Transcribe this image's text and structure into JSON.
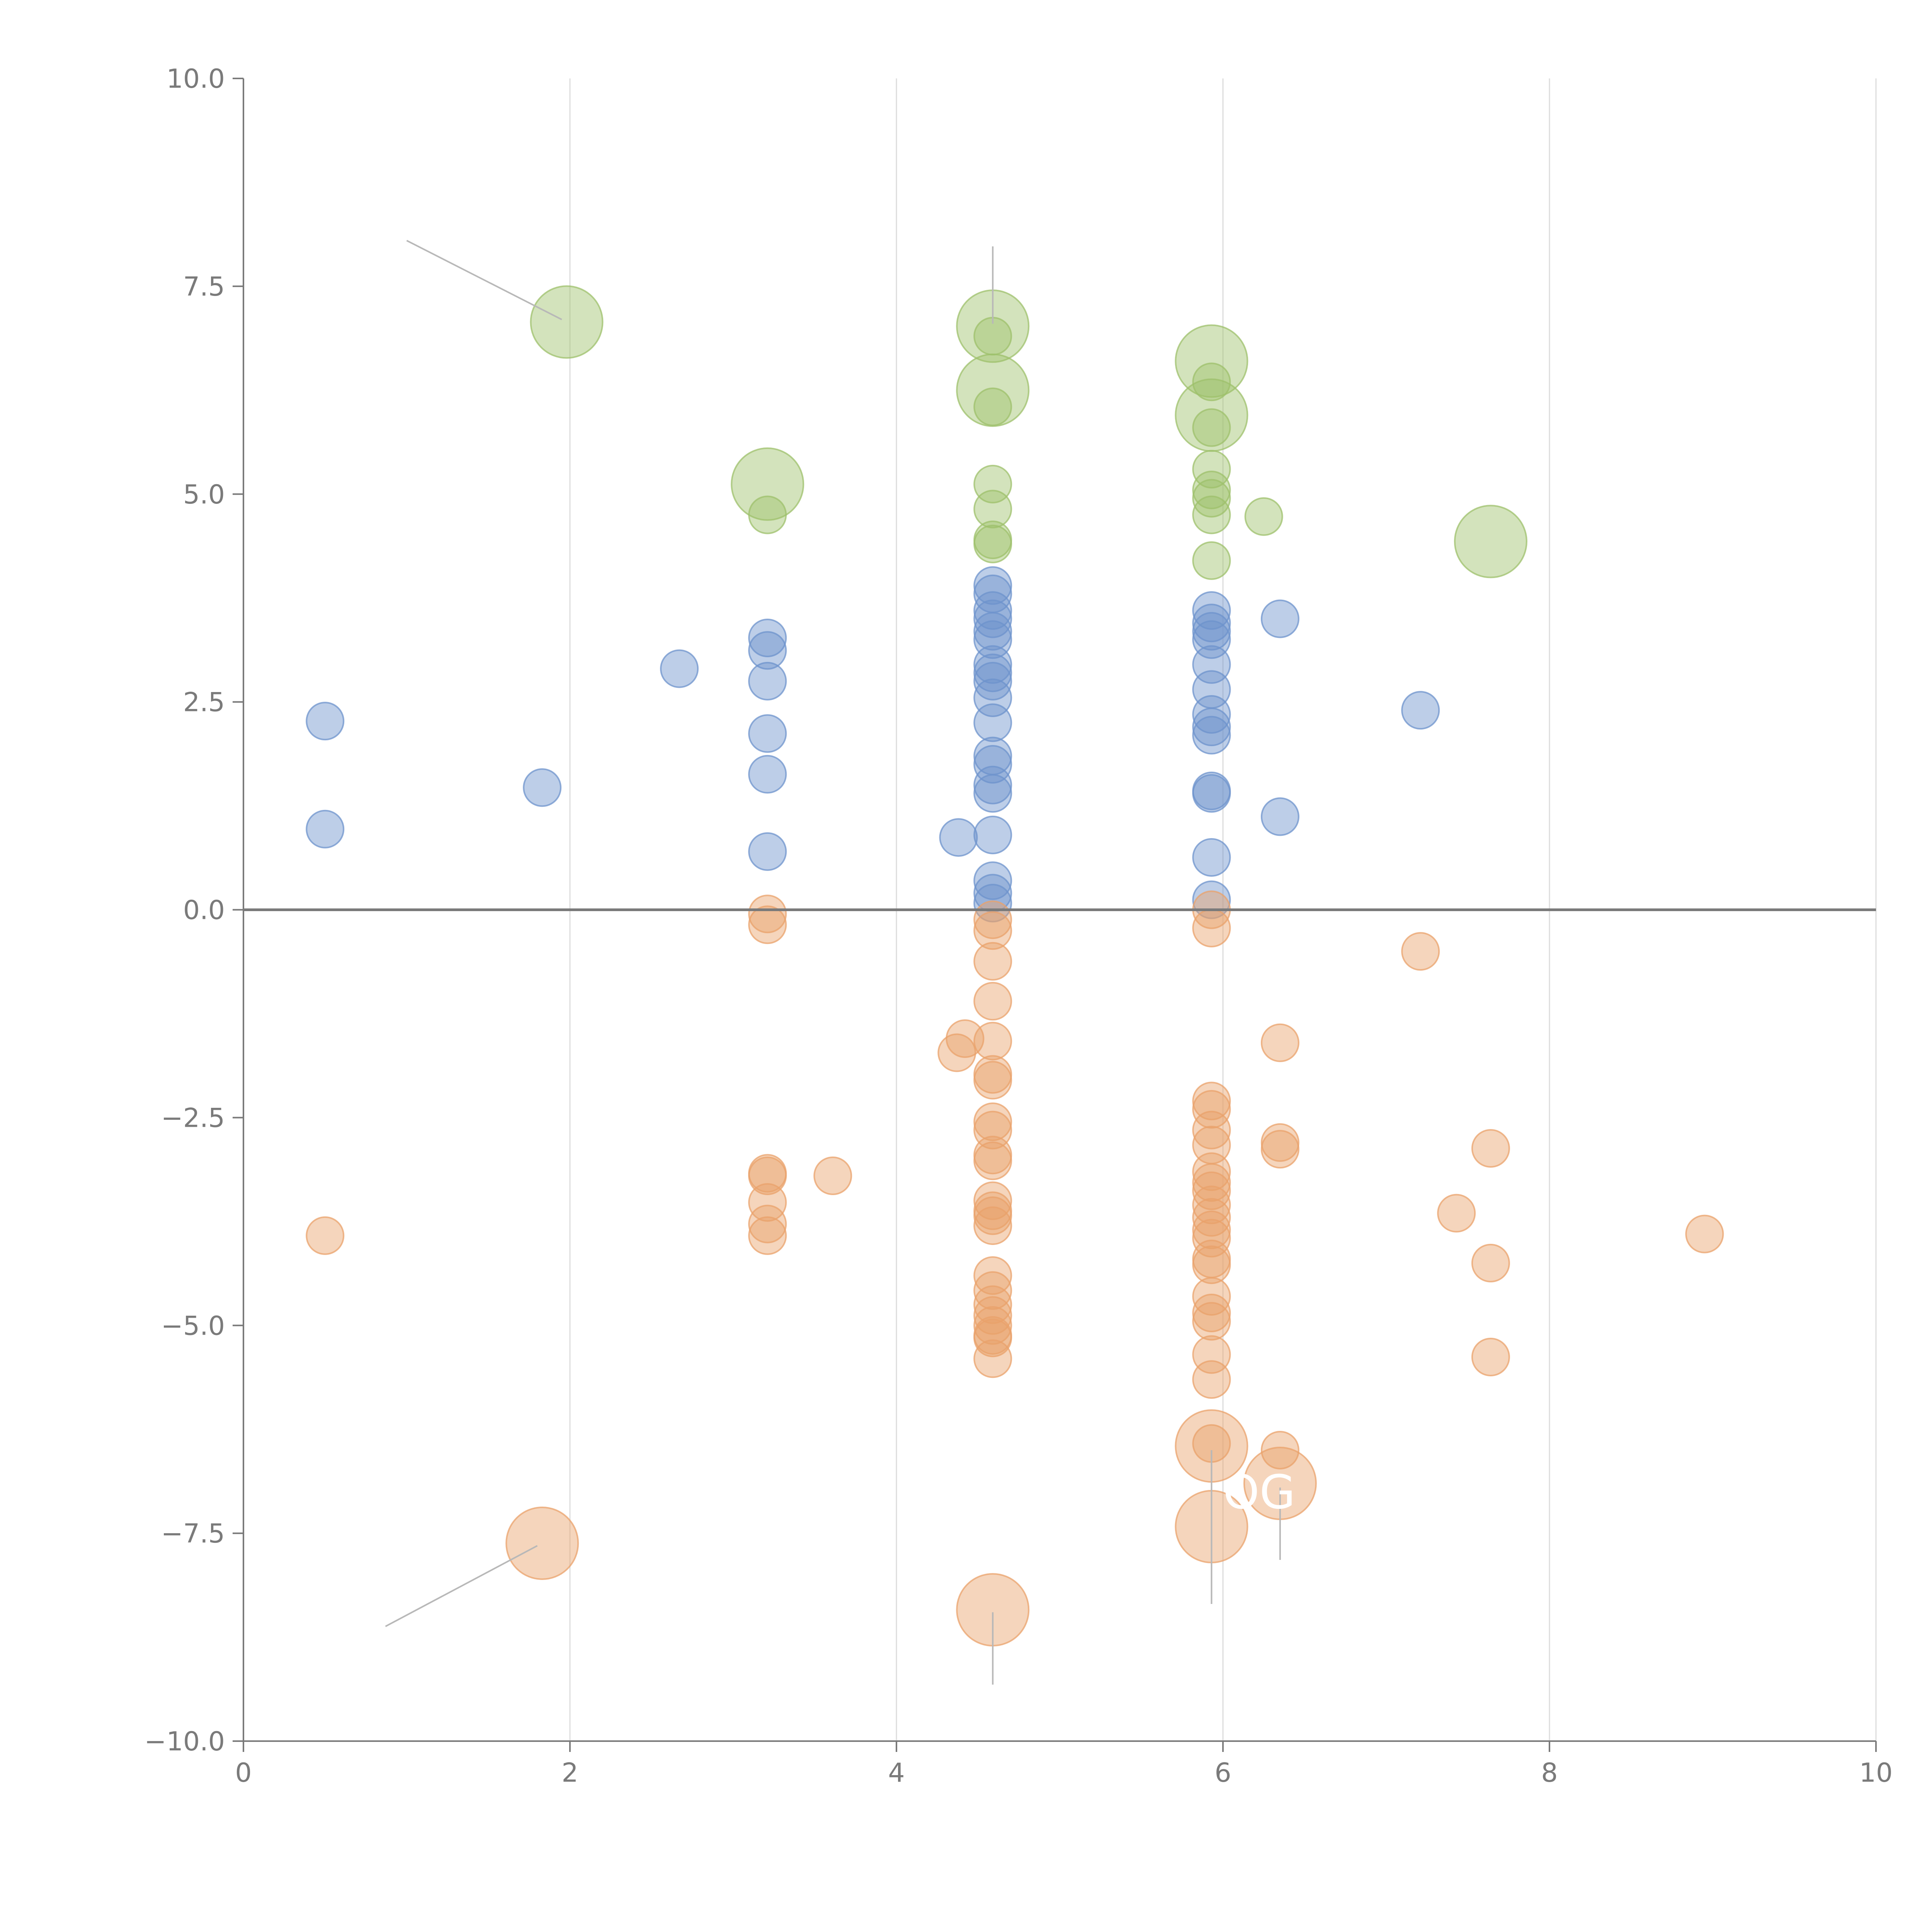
{
  "chart_data": {
    "type": "scatter",
    "title": "",
    "xlabel": "",
    "ylabel": "",
    "xlim": [
      0,
      10
    ],
    "ylim": [
      -10,
      10
    ],
    "grid": "vertical",
    "legend": "none",
    "x_ticks": [
      0,
      2,
      4,
      6,
      8,
      10
    ],
    "x_tick_labels": [
      "0",
      "2",
      "4",
      "6",
      "8",
      "10"
    ],
    "y_ticks": [
      10,
      7.5,
      5,
      2.5,
      0,
      -2.5,
      -5,
      -7.5,
      -10
    ],
    "y_tick_labels": [
      "10.0",
      "7.5",
      "5.0",
      "2.5",
      "0.0",
      "−2.5",
      "−5.0",
      "−7.5",
      "−10.0"
    ],
    "reference_lines": [
      {
        "axis": "y",
        "value": 0
      }
    ],
    "series": [
      {
        "name": "green",
        "color": "#9dc06b",
        "points": [
          {
            "x": 1.98,
            "y": 7.07,
            "size": 3
          },
          {
            "x": 4.59,
            "y": 7.02,
            "size": 3
          },
          {
            "x": 4.59,
            "y": 6.9,
            "size": 1
          },
          {
            "x": 4.59,
            "y": 6.25,
            "size": 3
          },
          {
            "x": 4.59,
            "y": 6.05,
            "size": 1
          },
          {
            "x": 5.93,
            "y": 6.6,
            "size": 3
          },
          {
            "x": 5.93,
            "y": 6.35,
            "size": 1
          },
          {
            "x": 5.93,
            "y": 5.95,
            "size": 3
          },
          {
            "x": 5.93,
            "y": 5.8,
            "size": 1
          },
          {
            "x": 5.93,
            "y": 5.3,
            "size": 1
          },
          {
            "x": 5.93,
            "y": 5.05,
            "size": 1
          },
          {
            "x": 5.93,
            "y": 4.95,
            "size": 1
          },
          {
            "x": 5.93,
            "y": 4.75,
            "size": 1
          },
          {
            "x": 5.93,
            "y": 4.2,
            "size": 1
          },
          {
            "x": 6.25,
            "y": 4.73,
            "size": 1
          },
          {
            "x": 3.21,
            "y": 5.12,
            "size": 3
          },
          {
            "x": 3.21,
            "y": 4.75,
            "size": 1
          },
          {
            "x": 4.59,
            "y": 5.12,
            "size": 1
          },
          {
            "x": 4.59,
            "y": 4.82,
            "size": 1
          },
          {
            "x": 4.59,
            "y": 4.45,
            "size": 1
          },
          {
            "x": 4.59,
            "y": 4.4,
            "size": 1
          },
          {
            "x": 7.64,
            "y": 4.43,
            "size": 3
          }
        ]
      },
      {
        "name": "blue",
        "color": "#6d93cc",
        "points": [
          {
            "x": 0.5,
            "y": 2.27
          },
          {
            "x": 0.5,
            "y": 0.97
          },
          {
            "x": 1.83,
            "y": 1.47
          },
          {
            "x": 2.67,
            "y": 2.9
          },
          {
            "x": 3.21,
            "y": 3.27
          },
          {
            "x": 3.21,
            "y": 3.12
          },
          {
            "x": 3.21,
            "y": 2.75
          },
          {
            "x": 3.21,
            "y": 2.12
          },
          {
            "x": 3.21,
            "y": 1.63
          },
          {
            "x": 3.21,
            "y": 0.7
          },
          {
            "x": 4.38,
            "y": 0.87
          },
          {
            "x": 4.59,
            "y": 3.9
          },
          {
            "x": 4.59,
            "y": 3.8
          },
          {
            "x": 4.59,
            "y": 3.6
          },
          {
            "x": 4.59,
            "y": 3.5
          },
          {
            "x": 4.59,
            "y": 3.35
          },
          {
            "x": 4.59,
            "y": 3.25
          },
          {
            "x": 4.59,
            "y": 2.95
          },
          {
            "x": 4.59,
            "y": 2.85
          },
          {
            "x": 4.59,
            "y": 2.75
          },
          {
            "x": 4.59,
            "y": 2.55
          },
          {
            "x": 4.59,
            "y": 2.25
          },
          {
            "x": 4.59,
            "y": 1.85
          },
          {
            "x": 4.59,
            "y": 1.75
          },
          {
            "x": 4.59,
            "y": 1.5
          },
          {
            "x": 4.59,
            "y": 1.4
          },
          {
            "x": 4.59,
            "y": 0.9
          },
          {
            "x": 4.59,
            "y": 0.35
          },
          {
            "x": 4.59,
            "y": 0.2
          },
          {
            "x": 4.59,
            "y": 0.08
          },
          {
            "x": 5.93,
            "y": 3.6
          },
          {
            "x": 5.93,
            "y": 3.45
          },
          {
            "x": 5.93,
            "y": 3.35
          },
          {
            "x": 5.93,
            "y": 3.25
          },
          {
            "x": 5.93,
            "y": 2.95
          },
          {
            "x": 5.93,
            "y": 2.65
          },
          {
            "x": 5.93,
            "y": 2.35
          },
          {
            "x": 5.93,
            "y": 2.2
          },
          {
            "x": 5.93,
            "y": 2.1
          },
          {
            "x": 5.93,
            "y": 1.43
          },
          {
            "x": 5.93,
            "y": 1.4
          },
          {
            "x": 5.93,
            "y": 0.63
          },
          {
            "x": 5.93,
            "y": 0.12
          },
          {
            "x": 6.35,
            "y": 3.5
          },
          {
            "x": 6.35,
            "y": 1.12
          },
          {
            "x": 7.21,
            "y": 2.4
          }
        ]
      },
      {
        "name": "orange",
        "color": "#e9a26b",
        "points": [
          {
            "x": 0.5,
            "y": -3.92,
            "size": 1
          },
          {
            "x": 1.83,
            "y": -7.62,
            "size": 3
          },
          {
            "x": 3.21,
            "y": -0.05,
            "size": 1
          },
          {
            "x": 3.21,
            "y": -0.18,
            "size": 1
          },
          {
            "x": 3.21,
            "y": -3.17,
            "size": 1
          },
          {
            "x": 3.21,
            "y": -3.2,
            "size": 1
          },
          {
            "x": 3.21,
            "y": -3.52,
            "size": 1
          },
          {
            "x": 3.21,
            "y": -3.78,
            "size": 1
          },
          {
            "x": 3.21,
            "y": -3.92,
            "size": 1
          },
          {
            "x": 3.61,
            "y": -3.2,
            "size": 1
          },
          {
            "x": 4.37,
            "y": -1.72,
            "size": 1
          },
          {
            "x": 4.42,
            "y": -1.55,
            "size": 1
          },
          {
            "x": 4.59,
            "y": -0.12,
            "size": 1
          },
          {
            "x": 4.59,
            "y": -0.25,
            "size": 1
          },
          {
            "x": 4.59,
            "y": -0.62,
            "size": 1
          },
          {
            "x": 4.59,
            "y": -1.1,
            "size": 1
          },
          {
            "x": 4.59,
            "y": -1.58,
            "size": 1
          },
          {
            "x": 4.59,
            "y": -1.98,
            "size": 1
          },
          {
            "x": 4.59,
            "y": -2.05,
            "size": 1
          },
          {
            "x": 4.59,
            "y": -2.55,
            "size": 1
          },
          {
            "x": 4.59,
            "y": -2.65,
            "size": 1
          },
          {
            "x": 4.59,
            "y": -2.95,
            "size": 1
          },
          {
            "x": 4.59,
            "y": -3.02,
            "size": 1
          },
          {
            "x": 4.59,
            "y": -3.5,
            "size": 1
          },
          {
            "x": 4.59,
            "y": -3.62,
            "size": 1
          },
          {
            "x": 4.59,
            "y": -3.68,
            "size": 1
          },
          {
            "x": 4.59,
            "y": -3.8,
            "size": 1
          },
          {
            "x": 4.59,
            "y": -4.4,
            "size": 1
          },
          {
            "x": 4.59,
            "y": -4.58,
            "size": 1
          },
          {
            "x": 4.59,
            "y": -4.75,
            "size": 1
          },
          {
            "x": 4.59,
            "y": -4.88,
            "size": 1
          },
          {
            "x": 4.59,
            "y": -5.0,
            "size": 1
          },
          {
            "x": 4.59,
            "y": -5.12,
            "size": 1
          },
          {
            "x": 4.59,
            "y": -5.15,
            "size": 1
          },
          {
            "x": 4.59,
            "y": -5.4,
            "size": 1
          },
          {
            "x": 4.59,
            "y": -8.42,
            "size": 3
          },
          {
            "x": 5.93,
            "y": 0.0,
            "size": 1
          },
          {
            "x": 5.93,
            "y": -0.22,
            "size": 1
          },
          {
            "x": 5.93,
            "y": -2.3,
            "size": 1
          },
          {
            "x": 5.93,
            "y": -2.4,
            "size": 1
          },
          {
            "x": 5.93,
            "y": -2.65,
            "size": 1
          },
          {
            "x": 5.93,
            "y": -2.83,
            "size": 1
          },
          {
            "x": 5.93,
            "y": -3.15,
            "size": 1
          },
          {
            "x": 5.93,
            "y": -3.28,
            "size": 1
          },
          {
            "x": 5.93,
            "y": -3.38,
            "size": 1
          },
          {
            "x": 5.93,
            "y": -3.55,
            "size": 1
          },
          {
            "x": 5.93,
            "y": -3.7,
            "size": 1
          },
          {
            "x": 5.93,
            "y": -3.85,
            "size": 1
          },
          {
            "x": 5.93,
            "y": -3.95,
            "size": 1
          },
          {
            "x": 5.93,
            "y": -4.2,
            "size": 1
          },
          {
            "x": 5.93,
            "y": -4.27,
            "size": 1
          },
          {
            "x": 5.93,
            "y": -4.65,
            "size": 1
          },
          {
            "x": 5.93,
            "y": -4.85,
            "size": 1
          },
          {
            "x": 5.93,
            "y": -4.95,
            "size": 1
          },
          {
            "x": 5.93,
            "y": -5.35,
            "size": 1
          },
          {
            "x": 5.93,
            "y": -5.65,
            "size": 1
          },
          {
            "x": 5.93,
            "y": -6.42,
            "size": 1
          },
          {
            "x": 5.93,
            "y": -6.45,
            "size": 3
          },
          {
            "x": 5.93,
            "y": -7.42,
            "size": 3
          },
          {
            "x": 6.35,
            "y": -1.6,
            "size": 1
          },
          {
            "x": 6.35,
            "y": -2.8,
            "size": 1
          },
          {
            "x": 6.35,
            "y": -2.88,
            "size": 1
          },
          {
            "x": 6.35,
            "y": -6.5,
            "size": 1
          },
          {
            "x": 6.35,
            "y": -6.9,
            "size": 3
          },
          {
            "x": 7.21,
            "y": -0.5,
            "size": 1
          },
          {
            "x": 7.43,
            "y": -3.65,
            "size": 1
          },
          {
            "x": 7.64,
            "y": -2.87,
            "size": 1
          },
          {
            "x": 7.64,
            "y": -4.25,
            "size": 1
          },
          {
            "x": 7.64,
            "y": -5.38,
            "size": 1
          },
          {
            "x": 8.95,
            "y": -3.9,
            "size": 1
          }
        ]
      }
    ],
    "annotations": [
      {
        "text": "OG",
        "x": 6.0,
        "y": -7.2,
        "x2": 6.35,
        "y2": -7.15
      }
    ],
    "leader_lines": [
      {
        "x1": 1.0,
        "y1": 8.05,
        "x2": 1.95,
        "y2": 7.1
      },
      {
        "x1": 4.59,
        "y1": 7.98,
        "x2": 4.59,
        "y2": 7.05
      },
      {
        "x1": 0.87,
        "y1": -8.62,
        "x2": 1.8,
        "y2": -7.65
      },
      {
        "x1": 4.59,
        "y1": -8.45,
        "x2": 4.59,
        "y2": -9.32
      },
      {
        "x1": 5.93,
        "y1": -6.5,
        "x2": 5.93,
        "y2": -8.35
      },
      {
        "x1": 6.35,
        "y1": -6.95,
        "x2": 6.35,
        "y2": -7.82
      }
    ]
  }
}
